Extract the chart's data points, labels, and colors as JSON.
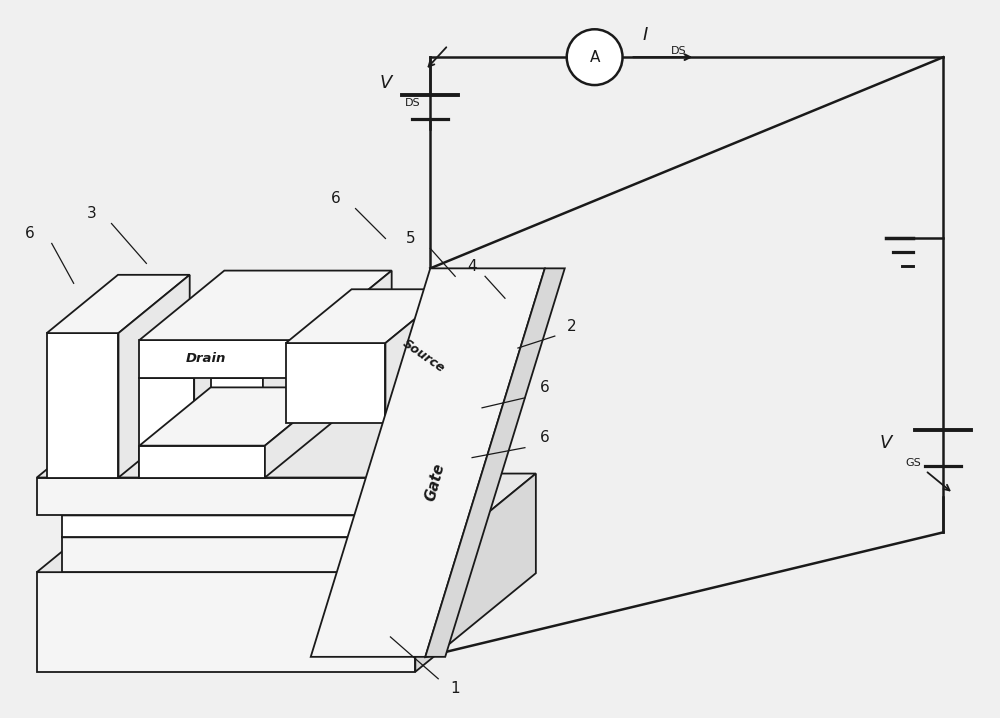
{
  "bg_color": "#f0f0f0",
  "line_color": "#1a1a1a",
  "fill_white": "#ffffff",
  "fill_light": "#f5f5f5",
  "fill_mid": "#e8e8e8",
  "fill_dark": "#d8d8d8",
  "labels": {
    "drain": "Drain",
    "source": "Source",
    "gate": "Gate",
    "vds_main": "V",
    "vds_sub": "DS",
    "ids_main": "I",
    "ids_sub": "DS",
    "vgs_main": "V",
    "vgs_sub": "GS",
    "ammeter": "A"
  },
  "numbers": {
    "n1": "1",
    "n2": "2",
    "n3": "3",
    "n4": "4",
    "n5": "5",
    "n6a": "6",
    "n6b": "6",
    "n6c": "6",
    "n6d": "6"
  }
}
